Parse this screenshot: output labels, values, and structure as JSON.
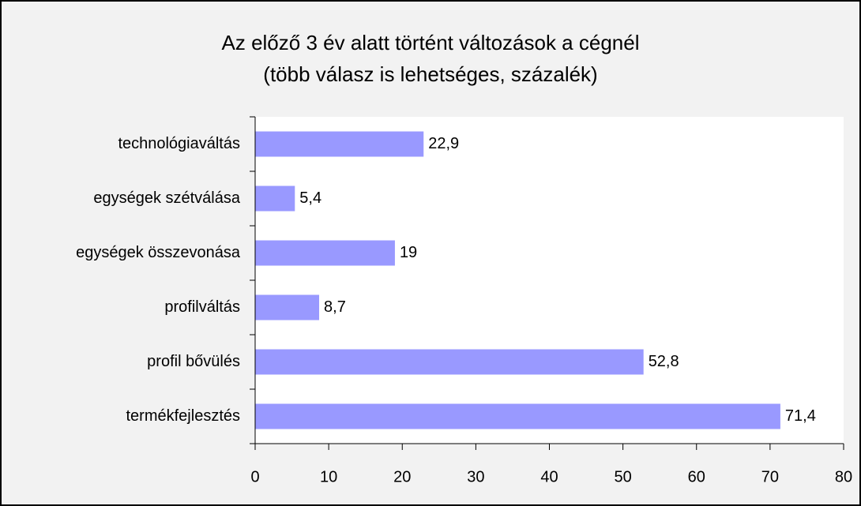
{
  "chart_data": {
    "type": "barh",
    "title": [
      "Az előző 3 év alatt történt változások a cégnél",
      "(több válasz is lehetséges, százalék)"
    ],
    "categories": [
      "technológiaváltás",
      "egységek szétválása",
      "egységek összevonása",
      "profilváltás",
      "profil bővülés",
      "termékfejlesztés"
    ],
    "values": [
      22.9,
      5.4,
      19,
      8.7,
      52.8,
      71.4
    ],
    "value_labels": [
      "22,9",
      "5,4",
      "19",
      "8,7",
      "52,8",
      "71,4"
    ],
    "color": "#9999ff",
    "xlim": [
      0,
      80
    ],
    "xticks": [
      0,
      10,
      20,
      30,
      40,
      50,
      60,
      70,
      80
    ]
  }
}
